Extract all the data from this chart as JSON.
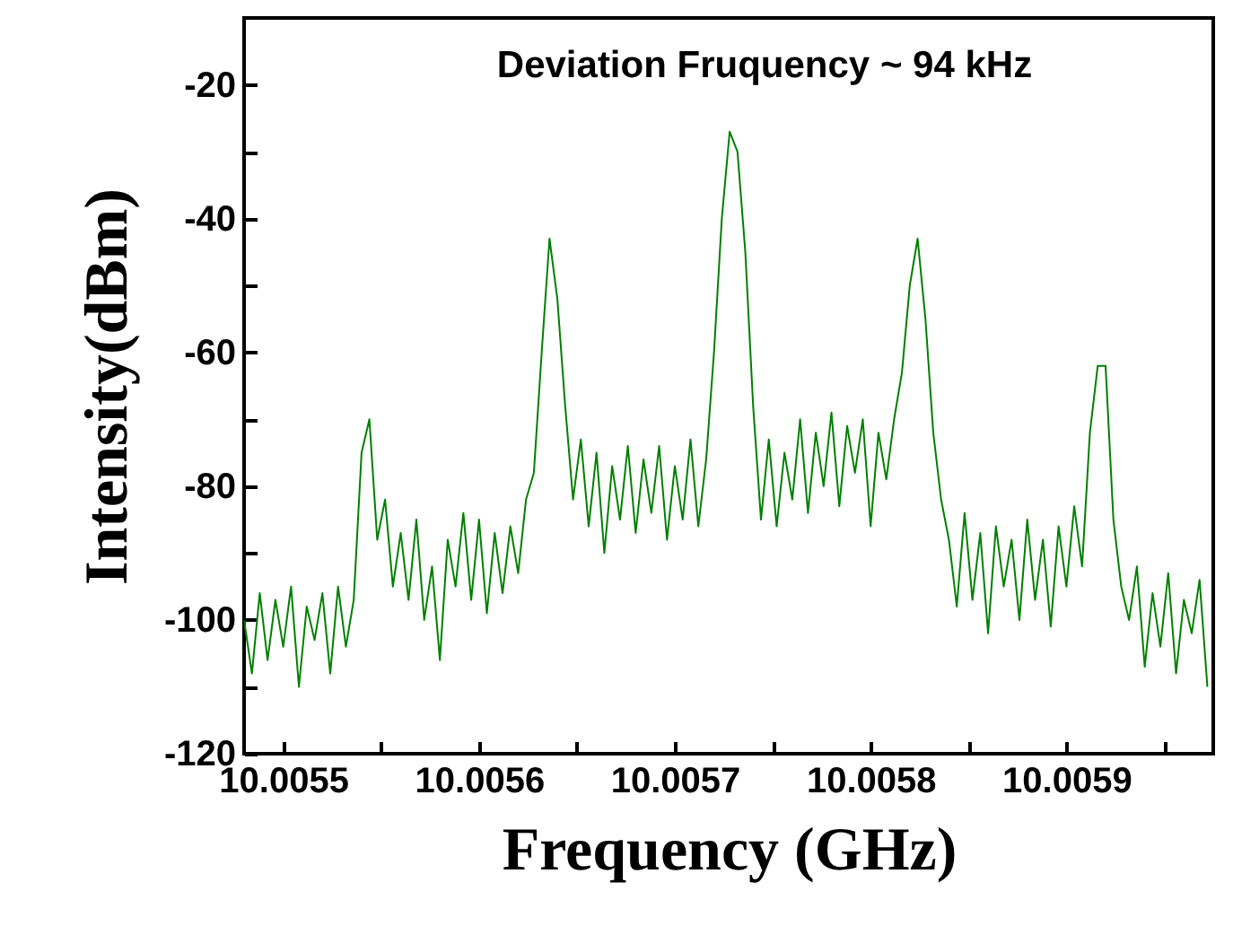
{
  "chart_data": {
    "type": "line",
    "xlabel": "Frequency (GHz)",
    "ylabel": "Intensity(dBm)",
    "annotations": [
      "Deviation Fruquency ~ 94 kHz"
    ],
    "xlim": [
      10.00548,
      10.005975
    ],
    "ylim": [
      -120,
      -10
    ],
    "xticks": [
      10.0055,
      {
        "value": 10.00555,
        "label": null
      },
      10.0056,
      {
        "value": 10.00565,
        "label": null
      },
      10.0057,
      {
        "value": 10.00575,
        "label": null
      },
      10.0058,
      {
        "value": 10.00585,
        "label": null
      },
      10.0059,
      {
        "value": 10.00595,
        "label": null
      }
    ],
    "yticks": [
      -120,
      {
        "value": -110,
        "label": null
      },
      -100,
      {
        "value": -90,
        "label": null
      },
      -80,
      {
        "value": -70,
        "label": null
      },
      -60,
      {
        "value": -50,
        "label": null
      },
      -40,
      {
        "value": -30,
        "label": null
      },
      -20
    ],
    "grid": false,
    "marker": "none",
    "line_style": "solid",
    "x": [
      10.00548,
      10.005484,
      10.005488,
      10.005492,
      10.005496,
      10.0055,
      10.005504,
      10.005508,
      10.005512,
      10.005516,
      10.00552,
      10.005524,
      10.005528,
      10.005532,
      10.005536,
      10.00554,
      10.005544,
      10.005548,
      10.005552,
      10.005556,
      10.00556,
      10.005564,
      10.005568,
      10.005572,
      10.005576,
      10.00558,
      10.005584,
      10.005588,
      10.005592,
      10.005596,
      10.0056,
      10.005604,
      10.005608,
      10.005612,
      10.005616,
      10.00562,
      10.005624,
      10.005628,
      10.005632,
      10.005636,
      10.00564,
      10.005644,
      10.005648,
      10.005652,
      10.005656,
      10.00566,
      10.005664,
      10.005668,
      10.005672,
      10.005676,
      10.00568,
      10.005684,
      10.005688,
      10.005692,
      10.005696,
      10.0057,
      10.005704,
      10.005708,
      10.005712,
      10.005716,
      10.00572,
      10.005724,
      10.005728,
      10.005732,
      10.005736,
      10.00574,
      10.005744,
      10.005748,
      10.005752,
      10.005756,
      10.00576,
      10.005764,
      10.005768,
      10.005772,
      10.005776,
      10.00578,
      10.005784,
      10.005788,
      10.005792,
      10.005796,
      10.0058,
      10.005804,
      10.005808,
      10.005812,
      10.005816,
      10.00582,
      10.005824,
      10.005828,
      10.005832,
      10.005836,
      10.00584,
      10.005844,
      10.005848,
      10.005852,
      10.005856,
      10.00586,
      10.005864,
      10.005868,
      10.005872,
      10.005876,
      10.00588,
      10.005884,
      10.005888,
      10.005892,
      10.005896,
      10.0059,
      10.005904,
      10.005908,
      10.005912,
      10.005916,
      10.00592,
      10.005924,
      10.005928,
      10.005932,
      10.005936,
      10.00594,
      10.005944,
      10.005948,
      10.005952,
      10.005956,
      10.00596,
      10.005964,
      10.005968,
      10.005972
    ],
    "series": [
      {
        "color": "#008000",
        "values": [
          -100,
          -108,
          -96,
          -106,
          -97,
          -104,
          -95,
          -110,
          -98,
          -103,
          -96,
          -108,
          -95,
          -104,
          -97,
          -75,
          -70,
          -88,
          -82,
          -95,
          -87,
          -97,
          -85,
          -100,
          -92,
          -106,
          -88,
          -95,
          -84,
          -97,
          -85,
          -99,
          -87,
          -96,
          -86,
          -93,
          -82,
          -78,
          -60,
          -43,
          -52,
          -68,
          -82,
          -73,
          -86,
          -75,
          -90,
          -77,
          -85,
          -74,
          -87,
          -76,
          -84,
          -74,
          -88,
          -77,
          -85,
          -73,
          -86,
          -76,
          -60,
          -40,
          -27,
          -30,
          -45,
          -68,
          -85,
          -73,
          -86,
          -75,
          -82,
          -70,
          -84,
          -72,
          -80,
          -69,
          -83,
          -71,
          -78,
          -70,
          -86,
          -72,
          -79,
          -70,
          -63,
          -50,
          -43,
          -55,
          -72,
          -82,
          -88,
          -98,
          -84,
          -97,
          -87,
          -102,
          -86,
          -95,
          -88,
          -100,
          -85,
          -97,
          -88,
          -101,
          -86,
          -95,
          -83,
          -92,
          -72,
          -62,
          -62,
          -85,
          -95,
          -100,
          -92,
          -107,
          -96,
          -104,
          -93,
          -108,
          -97,
          -102,
          -94,
          -110
        ]
      }
    ]
  }
}
